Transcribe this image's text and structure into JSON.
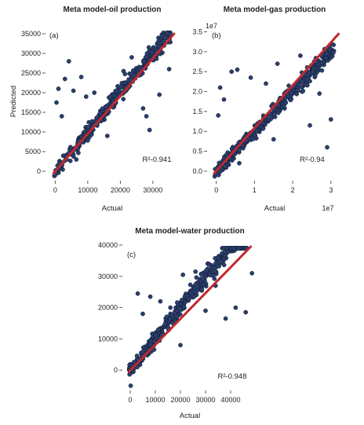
{
  "chart_data": [
    {
      "type": "scatter",
      "panel_label": "(a)",
      "title": "Meta model-oil production",
      "xlabel": "Actual",
      "ylabel": "Predicted",
      "xlim": [
        -2500,
        37500
      ],
      "ylim": [
        -2000,
        36000
      ],
      "xticks": [
        0,
        10000,
        20000,
        30000
      ],
      "xtick_labels": [
        "0",
        "10000",
        "20000",
        "30000"
      ],
      "yticks": [
        0,
        5000,
        10000,
        15000,
        20000,
        25000,
        30000,
        35000
      ],
      "ytick_labels": [
        "0",
        "5000",
        "10000",
        "15000",
        "20000",
        "25000",
        "30000",
        "35000"
      ],
      "fit_line": {
        "x": [
          -500,
          36500
        ],
        "y": [
          -500,
          35000
        ]
      },
      "annotation": "R²-0.941",
      "point_count": 400,
      "notable_outliers": [
        {
          "x": 4200,
          "y": 28000
        },
        {
          "x": 3000,
          "y": 23500
        },
        {
          "x": 1000,
          "y": 21000
        },
        {
          "x": 400,
          "y": 17500
        },
        {
          "x": 5600,
          "y": 20500
        },
        {
          "x": 29000,
          "y": 10500
        },
        {
          "x": 32000,
          "y": 19500
        },
        {
          "x": 28000,
          "y": 14000
        },
        {
          "x": 23500,
          "y": 29000
        },
        {
          "x": 12000,
          "y": 20000
        },
        {
          "x": 8000,
          "y": 24000
        },
        {
          "x": 35000,
          "y": 26000
        },
        {
          "x": 27000,
          "y": 16000
        },
        {
          "x": 21000,
          "y": 25500
        },
        {
          "x": 6500,
          "y": 3000
        },
        {
          "x": 16000,
          "y": 9000
        },
        {
          "x": 9500,
          "y": 19000
        },
        {
          "x": 2000,
          "y": 14000
        }
      ],
      "marker_color": "#2b3f6b",
      "line_color": "#c0282d",
      "grid": false
    },
    {
      "type": "scatter",
      "panel_label": "(b)",
      "title": "Meta model-gas production",
      "xlabel": "Actual",
      "ylabel": "",
      "scale_factor_label": "1e7",
      "xlim": [
        -0.2,
        3.25
      ],
      "ylim": [
        -0.2,
        3.55
      ],
      "xticks": [
        0,
        1,
        2,
        3
      ],
      "xtick_labels": [
        "0",
        "1",
        "2",
        "3"
      ],
      "yticks": [
        0.0,
        0.5,
        1.0,
        1.5,
        2.0,
        2.5,
        3.0,
        3.5
      ],
      "ytick_labels": [
        "0.0",
        "0.5",
        "1.0",
        "1.5",
        "2.0",
        "2.5",
        "3.0",
        "3.5"
      ],
      "fit_line": {
        "x": [
          -0.05,
          3.2
        ],
        "y": [
          -0.05,
          3.45
        ]
      },
      "annotation": "R²-0.94",
      "point_count": 400,
      "notable_outliers": [
        {
          "x": 0.4,
          "y": 2.5
        },
        {
          "x": 0.1,
          "y": 2.1
        },
        {
          "x": 0.55,
          "y": 2.55
        },
        {
          "x": 0.2,
          "y": 1.8
        },
        {
          "x": 0.9,
          "y": 2.35
        },
        {
          "x": 2.45,
          "y": 1.15
        },
        {
          "x": 2.9,
          "y": 0.6
        },
        {
          "x": 3.0,
          "y": 1.3
        },
        {
          "x": 2.7,
          "y": 1.95
        },
        {
          "x": 1.6,
          "y": 2.7
        },
        {
          "x": 1.3,
          "y": 2.2
        },
        {
          "x": 2.2,
          "y": 2.9
        },
        {
          "x": 0.6,
          "y": 0.2
        },
        {
          "x": 1.5,
          "y": 0.8
        },
        {
          "x": 0.05,
          "y": 1.4
        }
      ],
      "marker_color": "#2b3f6b",
      "line_color": "#c0282d",
      "grid": false
    },
    {
      "type": "scatter",
      "panel_label": "(c)",
      "title": "Meta model-water production",
      "xlabel": "Actual",
      "ylabel": "",
      "xlim": [
        -2500,
        50000
      ],
      "ylim": [
        -6000,
        40000
      ],
      "xticks": [
        0,
        10000,
        20000,
        30000,
        40000
      ],
      "xtick_labels": [
        "0",
        "10000",
        "20000",
        "30000",
        "40000"
      ],
      "yticks": [
        0,
        10000,
        20000,
        30000,
        40000
      ],
      "ytick_labels": [
        "0",
        "10000",
        "20000",
        "30000",
        "40000"
      ],
      "fit_line": {
        "x": [
          -500,
          48000
        ],
        "y": [
          -500,
          39500
        ]
      },
      "annotation": "R²-0.948",
      "point_count": 420,
      "notable_outliers": [
        {
          "x": 200,
          "y": -5000
        },
        {
          "x": 3000,
          "y": 24500
        },
        {
          "x": 8000,
          "y": 23500
        },
        {
          "x": 12000,
          "y": 22000
        },
        {
          "x": 21000,
          "y": 30500
        },
        {
          "x": 26000,
          "y": 31500
        },
        {
          "x": 34000,
          "y": 27000
        },
        {
          "x": 38000,
          "y": 16500
        },
        {
          "x": 42000,
          "y": 20000
        },
        {
          "x": 46000,
          "y": 18500
        },
        {
          "x": 48500,
          "y": 31000
        },
        {
          "x": 16000,
          "y": 20000
        },
        {
          "x": 30000,
          "y": 19000
        },
        {
          "x": 5000,
          "y": 18000
        },
        {
          "x": 20000,
          "y": 8000
        }
      ],
      "marker_color": "#2b3f6b",
      "line_color": "#c0282d",
      "grid": false
    }
  ]
}
